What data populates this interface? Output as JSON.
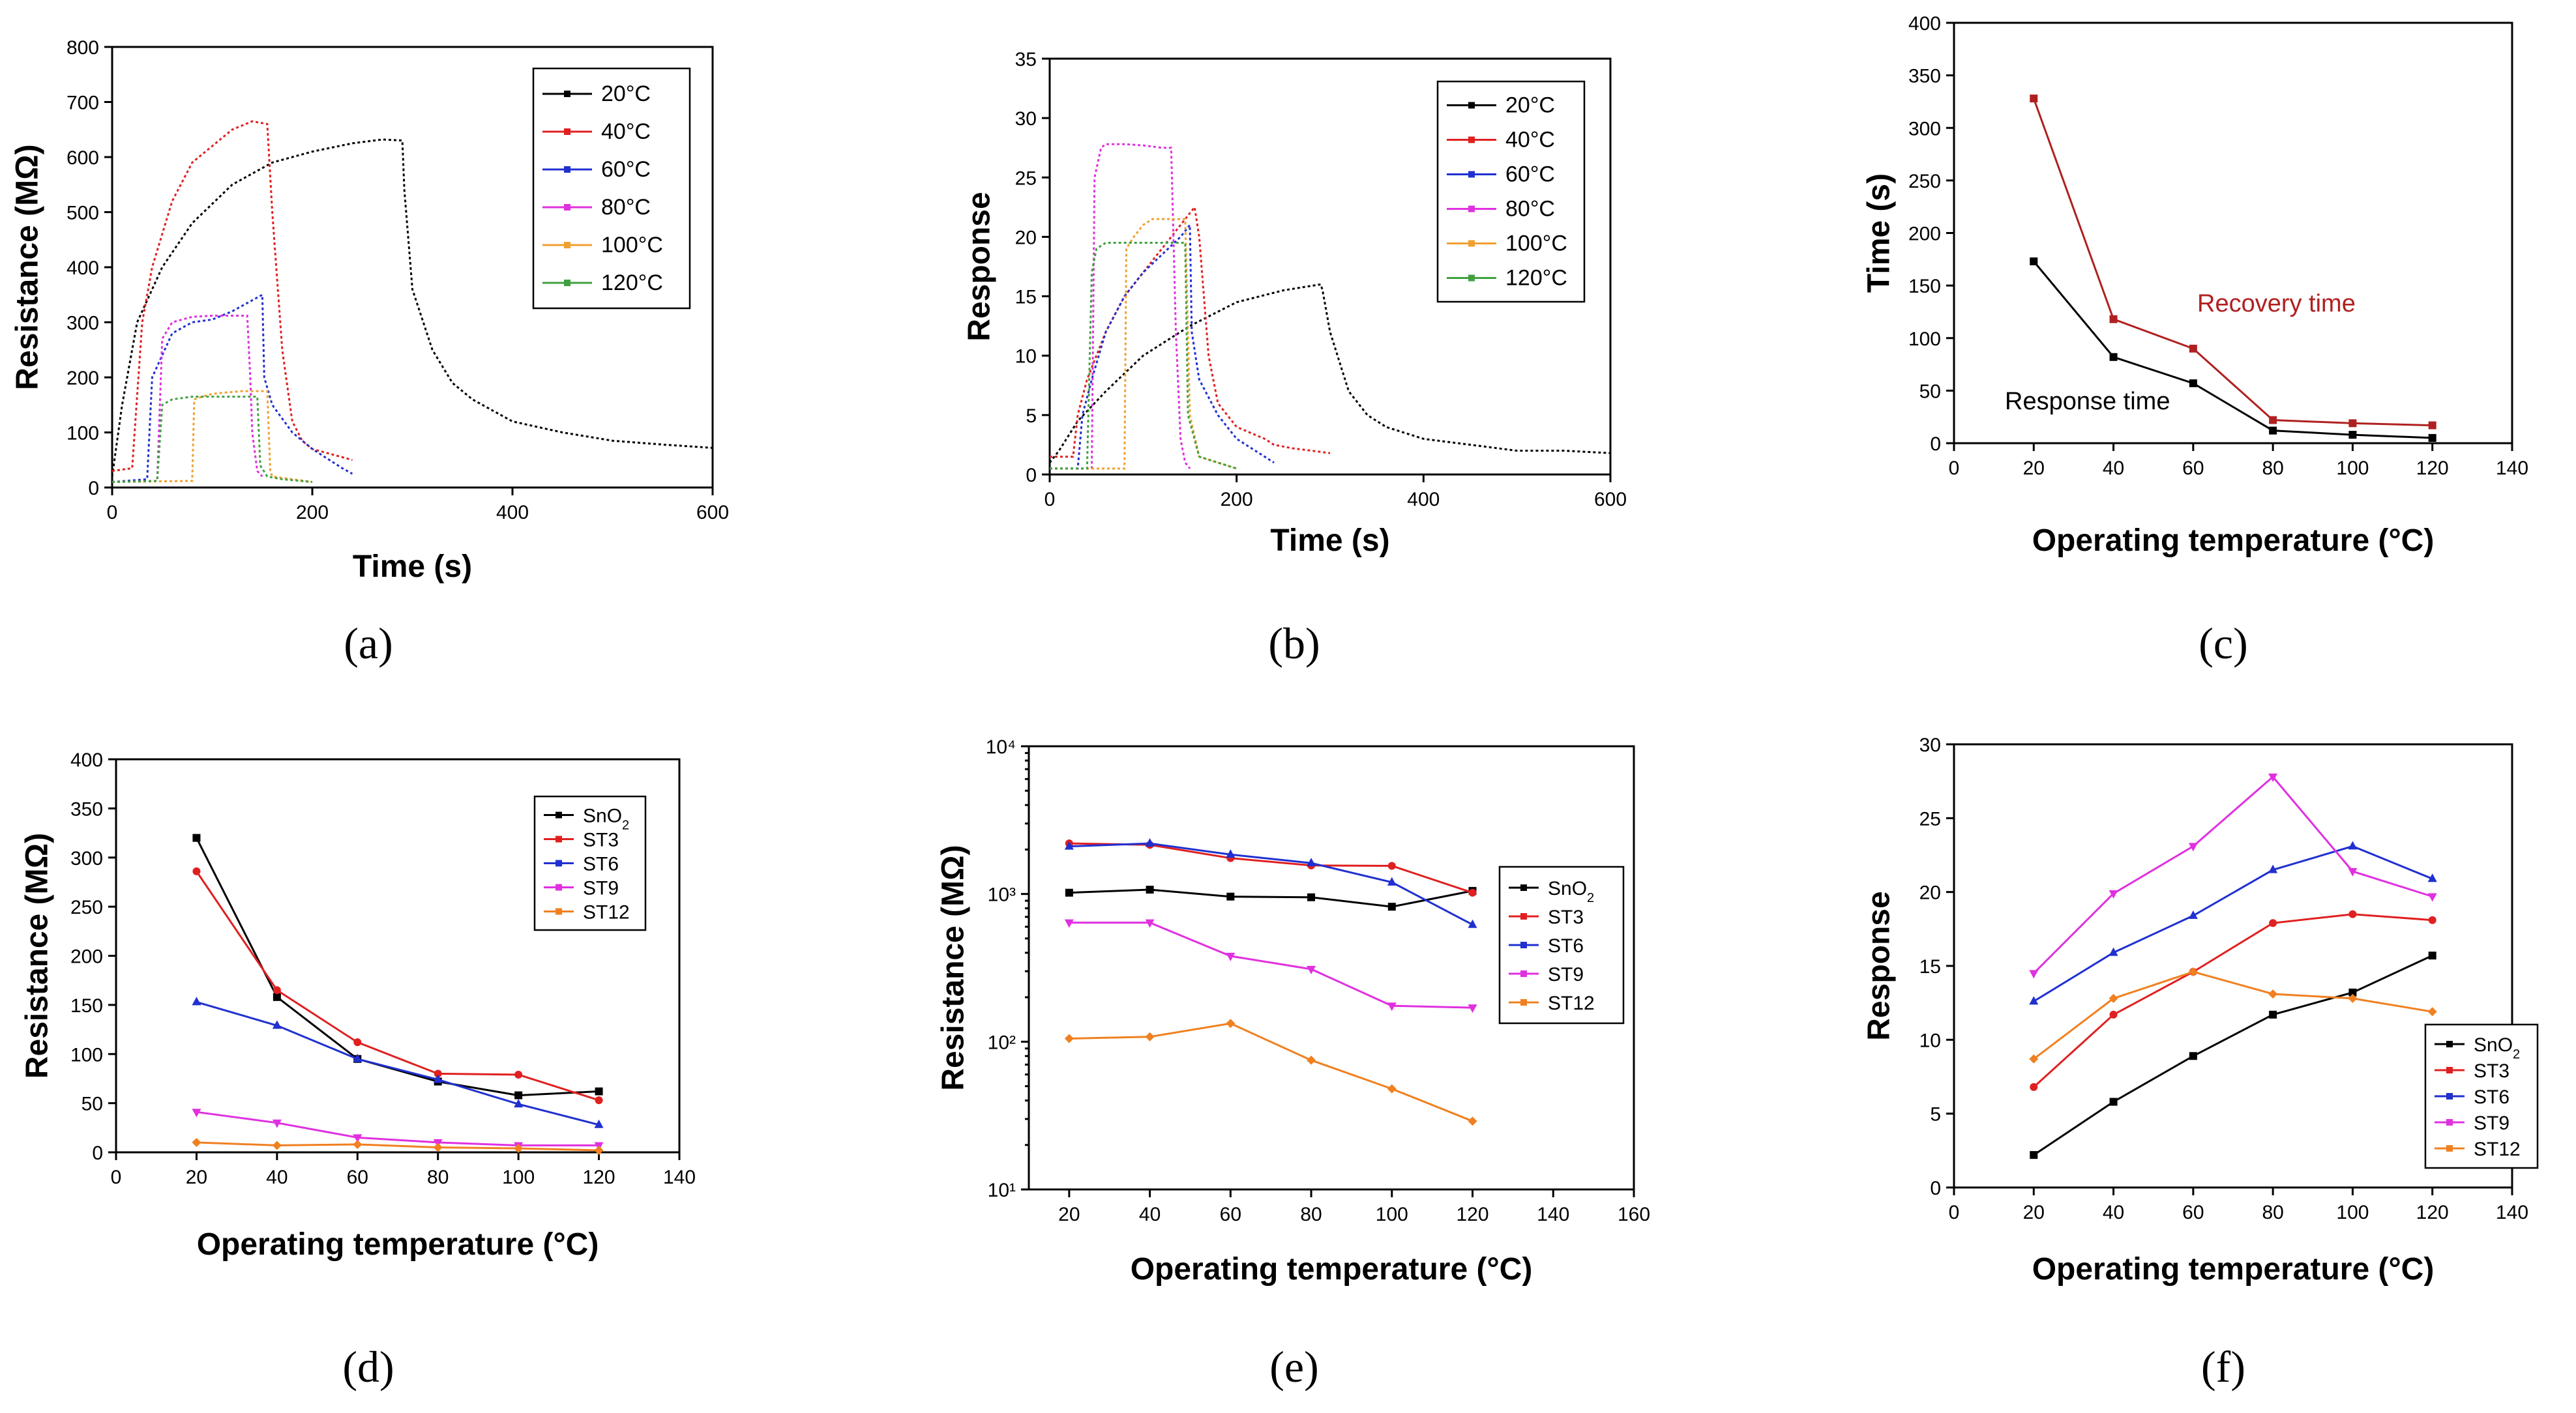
{
  "chart_data": [
    {
      "id": "a",
      "panel_label": "(a)",
      "type": "line",
      "xlabel": "Time (s)",
      "ylabel": "Resistance (MΩ)",
      "xlim": [
        0,
        600
      ],
      "ylim": [
        0,
        800
      ],
      "xticks": [
        0,
        200,
        400,
        600
      ],
      "yticks": [
        0,
        100,
        200,
        300,
        400,
        500,
        600,
        700,
        800
      ],
      "legend_position": "top-right",
      "series": [
        {
          "name": "20°C",
          "color": "#000000",
          "x": [
            0,
            10,
            25,
            50,
            80,
            120,
            160,
            200,
            240,
            270,
            290,
            292,
            300,
            320,
            340,
            360,
            400,
            450,
            500,
            550,
            600
          ],
          "y": [
            20,
            150,
            300,
            400,
            480,
            550,
            590,
            610,
            625,
            632,
            630,
            540,
            360,
            250,
            190,
            160,
            120,
            100,
            85,
            78,
            72
          ]
        },
        {
          "name": "40°C",
          "color": "#e02020",
          "x": [
            0,
            20,
            30,
            40,
            60,
            80,
            100,
            120,
            140,
            155,
            160,
            170,
            180,
            190,
            200,
            230,
            240
          ],
          "y": [
            30,
            35,
            300,
            400,
            520,
            590,
            620,
            650,
            665,
            660,
            500,
            250,
            120,
            85,
            70,
            55,
            50
          ]
        },
        {
          "name": "60°C",
          "color": "#2030d0",
          "x": [
            0,
            35,
            40,
            60,
            80,
            100,
            120,
            140,
            150,
            152,
            160,
            180,
            200,
            230,
            240
          ],
          "y": [
            10,
            15,
            200,
            280,
            300,
            305,
            320,
            340,
            350,
            200,
            150,
            100,
            70,
            35,
            25
          ]
        },
        {
          "name": "80°C",
          "color": "#e030e0",
          "x": [
            0,
            45,
            50,
            60,
            80,
            100,
            120,
            135,
            138,
            140,
            145,
            150
          ],
          "y": [
            10,
            12,
            270,
            300,
            310,
            312,
            312,
            312,
            200,
            100,
            30,
            20
          ]
        },
        {
          "name": "100°C",
          "color": "#f0a030",
          "x": [
            0,
            80,
            82,
            90,
            100,
            110,
            130,
            140,
            150,
            155,
            158,
            160,
            180,
            200
          ],
          "y": [
            10,
            12,
            160,
            165,
            170,
            172,
            175,
            175,
            175,
            175,
            30,
            20,
            15,
            10
          ]
        },
        {
          "name": "120°C",
          "color": "#40a040",
          "x": [
            0,
            45,
            50,
            60,
            80,
            100,
            120,
            140,
            145,
            148,
            155,
            170,
            200
          ],
          "y": [
            10,
            12,
            150,
            160,
            165,
            165,
            165,
            165,
            165,
            40,
            20,
            15,
            10
          ]
        }
      ]
    },
    {
      "id": "b",
      "panel_label": "(b)",
      "type": "line",
      "xlabel": "Time (s)",
      "ylabel": "Response",
      "xlim": [
        0,
        600
      ],
      "ylim": [
        0,
        35
      ],
      "xticks": [
        0,
        200,
        400,
        600
      ],
      "yticks": [
        0,
        5,
        10,
        15,
        20,
        25,
        30,
        35
      ],
      "legend_position": "top-right",
      "series": [
        {
          "name": "20°C",
          "color": "#000000",
          "x": [
            0,
            10,
            30,
            60,
            100,
            150,
            200,
            250,
            290,
            292,
            300,
            320,
            340,
            360,
            400,
            450,
            500,
            550,
            600
          ],
          "y": [
            1,
            2,
            4.5,
            7,
            10,
            12.5,
            14.5,
            15.5,
            16,
            15.5,
            12,
            7,
            5,
            4,
            3,
            2.5,
            2,
            2,
            1.8
          ]
        },
        {
          "name": "40°C",
          "color": "#e02020",
          "x": [
            0,
            25,
            30,
            40,
            60,
            80,
            100,
            120,
            140,
            150,
            155,
            160,
            170,
            180,
            200,
            230,
            240,
            260,
            280,
            300
          ],
          "y": [
            1.5,
            1.5,
            5,
            8,
            12,
            15,
            17,
            19,
            21,
            22,
            22.5,
            20,
            10,
            6,
            4,
            3,
            2.5,
            2.2,
            2,
            1.8
          ]
        },
        {
          "name": "60°C",
          "color": "#2030d0",
          "x": [
            0,
            30,
            35,
            45,
            60,
            80,
            100,
            120,
            140,
            150,
            152,
            160,
            180,
            200,
            230,
            240
          ],
          "y": [
            0.5,
            0.5,
            5,
            8,
            12,
            15,
            17,
            18.5,
            20,
            21,
            12,
            8,
            5,
            3,
            1.5,
            1
          ]
        },
        {
          "name": "80°C",
          "color": "#e030e0",
          "x": [
            0,
            45,
            48,
            55,
            60,
            80,
            100,
            120,
            130,
            135,
            140,
            145,
            150
          ],
          "y": [
            0.5,
            0.5,
            25,
            27.5,
            27.8,
            27.8,
            27.7,
            27.5,
            27.5,
            12,
            3,
            1,
            0.5
          ]
        },
        {
          "name": "100°C",
          "color": "#f0a030",
          "x": [
            0,
            80,
            82,
            90,
            100,
            110,
            120,
            130,
            140,
            145,
            150,
            160,
            180,
            200
          ],
          "y": [
            0.5,
            0.5,
            19,
            20,
            21,
            21.5,
            21.5,
            21.5,
            21.5,
            21.5,
            5,
            1.5,
            1,
            0.5
          ]
        },
        {
          "name": "120°C",
          "color": "#40a040",
          "x": [
            0,
            40,
            45,
            50,
            60,
            80,
            100,
            120,
            140,
            145,
            148,
            160,
            180,
            200
          ],
          "y": [
            0.5,
            0.5,
            17,
            19,
            19.5,
            19.5,
            19.5,
            19.5,
            19.5,
            19.5,
            5,
            1.5,
            1,
            0.5
          ]
        }
      ]
    },
    {
      "id": "c",
      "panel_label": "(c)",
      "type": "line",
      "xlabel": "Operating temperature (°C)",
      "ylabel": "Time (s)",
      "xlim": [
        0,
        140
      ],
      "ylim": [
        0,
        400
      ],
      "xticks": [
        0,
        20,
        40,
        60,
        80,
        100,
        120,
        140
      ],
      "yticks": [
        0,
        50,
        100,
        150,
        200,
        250,
        300,
        350,
        400
      ],
      "annotations": [
        {
          "text": "Recovery time",
          "color": "#b02020"
        },
        {
          "text": "Response time",
          "color": "#000000"
        }
      ],
      "series": [
        {
          "name": "Response time",
          "color": "#000000",
          "x": [
            20,
            40,
            60,
            80,
            100,
            120
          ],
          "y": [
            173,
            82,
            57,
            12,
            8,
            5
          ]
        },
        {
          "name": "Recovery time",
          "color": "#b02020",
          "x": [
            20,
            40,
            60,
            80,
            100,
            120
          ],
          "y": [
            328,
            118,
            90,
            22,
            19,
            17
          ]
        }
      ]
    },
    {
      "id": "d",
      "panel_label": "(d)",
      "type": "line",
      "xlabel": "Operating temperature (°C)",
      "ylabel": "Resistance (MΩ)",
      "xlim": [
        0,
        140
      ],
      "ylim": [
        0,
        400
      ],
      "xticks": [
        0,
        20,
        40,
        60,
        80,
        100,
        120,
        140
      ],
      "yticks": [
        0,
        50,
        100,
        150,
        200,
        250,
        300,
        350,
        400
      ],
      "legend_position": "top-right",
      "series": [
        {
          "name": "SnO",
          "name_sub": "2",
          "color": "#000000",
          "x": [
            20,
            40,
            60,
            80,
            100,
            120
          ],
          "y": [
            320,
            158,
            95,
            72,
            58,
            62
          ]
        },
        {
          "name": "ST3",
          "color": "#e02020",
          "x": [
            20,
            40,
            60,
            80,
            100,
            120
          ],
          "y": [
            286,
            165,
            112,
            80,
            79,
            53
          ]
        },
        {
          "name": "ST6",
          "color": "#2030d0",
          "x": [
            20,
            40,
            60,
            80,
            100,
            120
          ],
          "y": [
            153,
            129,
            95,
            74,
            49,
            28
          ]
        },
        {
          "name": "ST9",
          "color": "#e030e0",
          "x": [
            20,
            40,
            60,
            80,
            100,
            120
          ],
          "y": [
            41,
            30,
            15,
            10,
            7,
            7
          ]
        },
        {
          "name": "ST12",
          "color": "#f08020",
          "x": [
            20,
            40,
            60,
            80,
            100,
            120
          ],
          "y": [
            10,
            7,
            8,
            5,
            4,
            2
          ]
        }
      ]
    },
    {
      "id": "e",
      "panel_label": "(e)",
      "type": "line",
      "yscale": "log",
      "xlabel": "Operating temperature (°C)",
      "ylabel": "Resistance (MΩ)",
      "xlim": [
        10,
        160
      ],
      "ylim": [
        10,
        10000
      ],
      "xticks": [
        20,
        40,
        60,
        80,
        100,
        120,
        140,
        160
      ],
      "yticks": [
        10,
        100,
        1000,
        10000
      ],
      "ytick_labels": [
        "10¹",
        "10²",
        "10³",
        "10⁴"
      ],
      "legend_position": "middle-right",
      "series": [
        {
          "name": "SnO",
          "name_sub": "2",
          "color": "#000000",
          "x": [
            20,
            40,
            60,
            80,
            100,
            120
          ],
          "y": [
            1020,
            1070,
            960,
            950,
            820,
            1050
          ]
        },
        {
          "name": "ST3",
          "color": "#e02020",
          "x": [
            20,
            40,
            60,
            80,
            100,
            120
          ],
          "y": [
            2200,
            2150,
            1750,
            1560,
            1550,
            1020
          ]
        },
        {
          "name": "ST6",
          "color": "#2030d0",
          "x": [
            20,
            40,
            60,
            80,
            100,
            120
          ],
          "y": [
            2100,
            2200,
            1850,
            1620,
            1200,
            620
          ]
        },
        {
          "name": "ST9",
          "color": "#e030e0",
          "x": [
            20,
            40,
            60,
            80,
            100,
            120
          ],
          "y": [
            640,
            640,
            380,
            310,
            175,
            170
          ]
        },
        {
          "name": "ST12",
          "color": "#f08020",
          "x": [
            20,
            40,
            60,
            80,
            100,
            120
          ],
          "y": [
            105,
            108,
            133,
            75,
            48,
            29
          ]
        }
      ]
    },
    {
      "id": "f",
      "panel_label": "(f)",
      "type": "line",
      "xlabel": "Operating temperature (°C)",
      "ylabel": "Response",
      "xlim": [
        0,
        140
      ],
      "ylim": [
        0,
        30
      ],
      "xticks": [
        0,
        20,
        40,
        60,
        80,
        100,
        120,
        140
      ],
      "yticks": [
        0,
        5,
        10,
        15,
        20,
        25,
        30
      ],
      "legend_position": "bottom-right",
      "series": [
        {
          "name": "SnO",
          "name_sub": "2",
          "color": "#000000",
          "x": [
            20,
            40,
            60,
            80,
            100,
            120
          ],
          "y": [
            2.2,
            5.8,
            8.9,
            11.7,
            13.2,
            15.7
          ]
        },
        {
          "name": "ST3",
          "color": "#e02020",
          "x": [
            20,
            40,
            60,
            80,
            100,
            120
          ],
          "y": [
            6.8,
            11.7,
            14.6,
            17.9,
            18.5,
            18.1
          ]
        },
        {
          "name": "ST6",
          "color": "#2030d0",
          "x": [
            20,
            40,
            60,
            80,
            100,
            120
          ],
          "y": [
            12.6,
            15.9,
            18.4,
            21.5,
            23.1,
            20.9
          ]
        },
        {
          "name": "ST9",
          "color": "#e030e0",
          "x": [
            20,
            40,
            60,
            80,
            100,
            120
          ],
          "y": [
            14.5,
            19.9,
            23.1,
            27.8,
            21.4,
            19.7
          ]
        },
        {
          "name": "ST12",
          "color": "#f08020",
          "x": [
            20,
            40,
            60,
            80,
            100,
            120
          ],
          "y": [
            8.7,
            12.8,
            14.6,
            13.1,
            12.8,
            11.9
          ]
        }
      ]
    }
  ]
}
